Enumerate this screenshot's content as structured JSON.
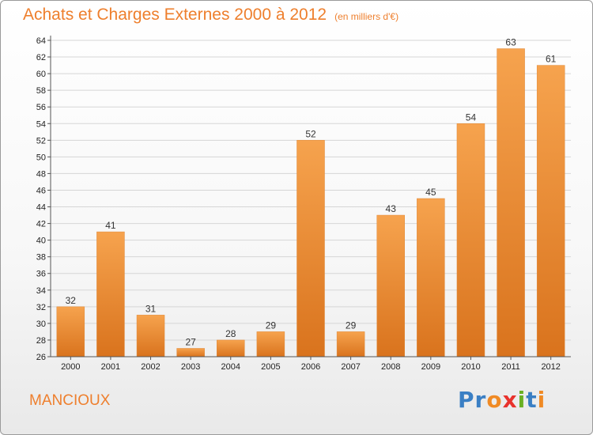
{
  "header": {
    "title": "Achats et Charges Externes 2000 à 2012",
    "unit": "(en milliers d'€)"
  },
  "footer": {
    "commune": "MANCIOUX",
    "logo_letters": [
      "P",
      "r",
      "o",
      "x",
      "i",
      "t",
      "i"
    ],
    "logo_colors": [
      "#3a7fc4",
      "#3a7fc4",
      "#f08a24",
      "#e8322c",
      "#6ab023",
      "#3a7fc4",
      "#f08a24"
    ]
  },
  "colors": {
    "bar_top": "#f6a34e",
    "bar_bottom": "#d9731d",
    "title": "#ee7f2d",
    "grid": "#d6d6d6"
  },
  "chart_data": {
    "type": "bar",
    "title": "Achats et Charges Externes 2000 à 2012",
    "subtitle": "(en milliers d'€)",
    "categories": [
      "2000",
      "2001",
      "2002",
      "2003",
      "2004",
      "2005",
      "2006",
      "2007",
      "2008",
      "2009",
      "2010",
      "2011",
      "2012"
    ],
    "values": [
      32,
      41,
      31,
      27,
      28,
      29,
      52,
      29,
      43,
      45,
      54,
      63,
      61
    ],
    "ylim": [
      26,
      64
    ],
    "ytick_step": 2,
    "grid": true,
    "xlabel": "",
    "ylabel": ""
  }
}
